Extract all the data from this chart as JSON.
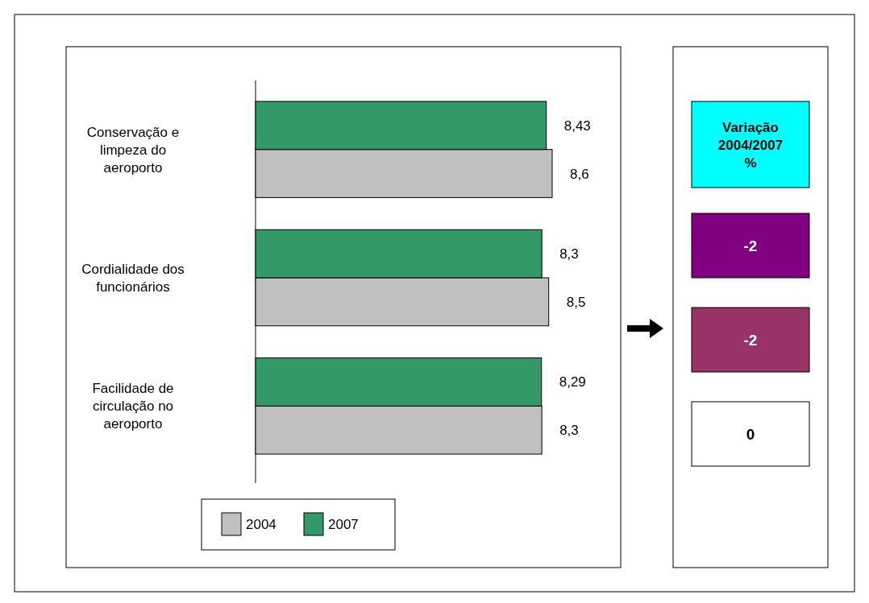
{
  "chart_data": [
    {
      "type": "bar",
      "orientation": "horizontal",
      "categories": [
        "Conservação e limpeza do aeroporto",
        "Cordialidade dos funcionários",
        "Facilidade de circulação no aeroporto"
      ],
      "series": [
        {
          "name": "2004",
          "color": "#c0c0c0",
          "values": [
            8.6,
            8.5,
            8.3
          ],
          "value_labels": [
            "8,6",
            "8,5",
            "8,3"
          ]
        },
        {
          "name": "2007",
          "color": "#339966",
          "values": [
            8.43,
            8.3,
            8.29
          ],
          "value_labels": [
            "8,43",
            "8,3",
            "8,29"
          ]
        }
      ],
      "legend": "bottom",
      "grid": false
    },
    {
      "type": "other",
      "title": "Variação 2004/2007 %",
      "annotations": [
        "-2",
        "-2",
        "0"
      ],
      "colors": [
        "#800080",
        "#993366",
        "#ffffff"
      ]
    }
  ]
}
